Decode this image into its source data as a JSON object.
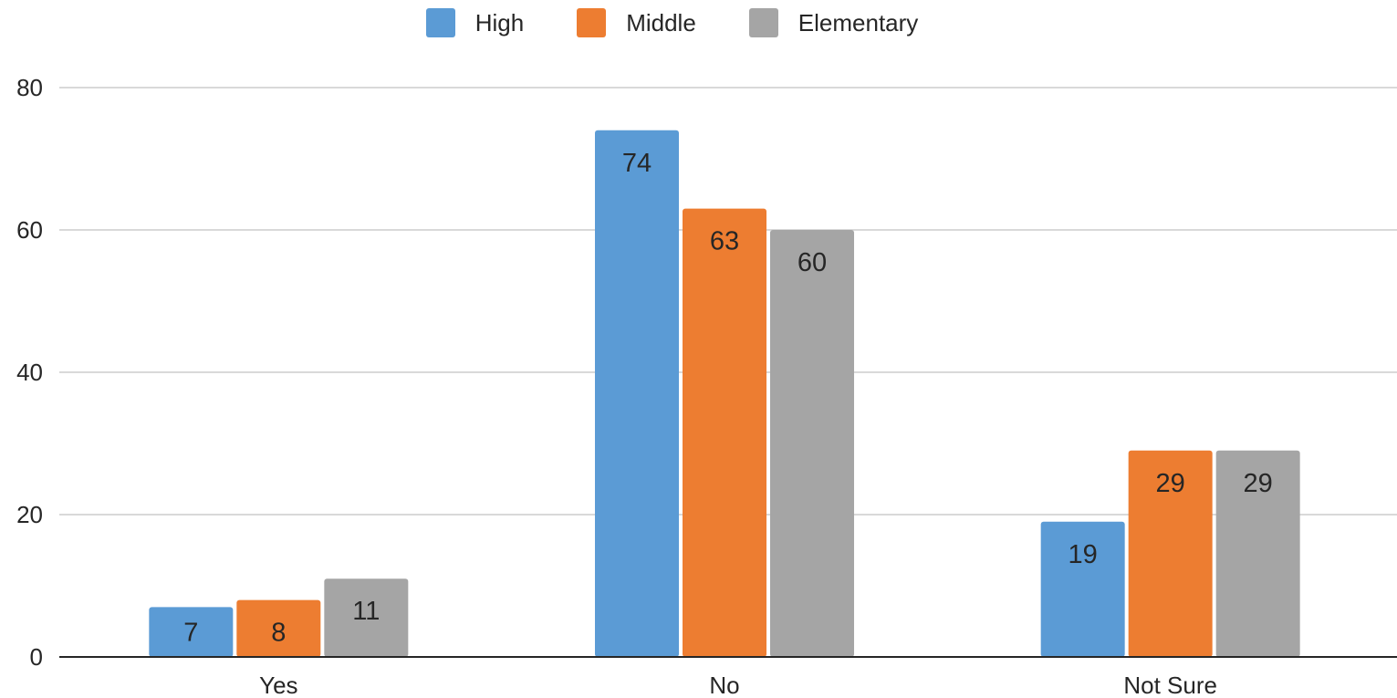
{
  "chart_data": {
    "type": "bar",
    "categories": [
      "Yes",
      "No",
      "Not Sure"
    ],
    "series": [
      {
        "name": "High",
        "values": [
          7,
          74,
          19
        ],
        "color": "#5b9bd5"
      },
      {
        "name": "Middle",
        "values": [
          8,
          63,
          29
        ],
        "color": "#ed7d31"
      },
      {
        "name": "Elementary",
        "values": [
          11,
          60,
          29
        ],
        "color": "#a5a5a5"
      }
    ],
    "ylim": [
      0,
      80
    ],
    "yticks": [
      0,
      20,
      40,
      60,
      80
    ],
    "grid": true,
    "legend_position": "top-center",
    "data_labels": true
  }
}
